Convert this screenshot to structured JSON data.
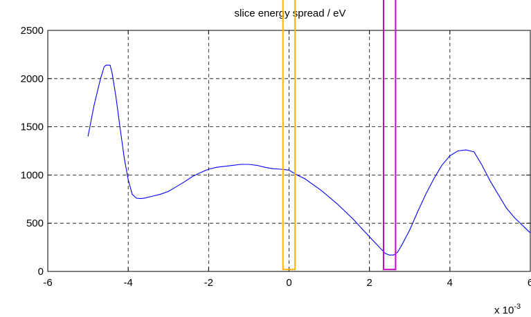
{
  "chart_data": {
    "type": "line",
    "title": "slice energy spread / eV",
    "xlabel": "",
    "ylabel": "",
    "x_multiplier_label": "x 10",
    "x_multiplier_exponent": "-3",
    "xlim": [
      -6,
      6
    ],
    "ylim": [
      0,
      2500
    ],
    "xticks": [
      -6,
      -4,
      -2,
      0,
      2,
      4,
      6
    ],
    "xtick_labels": [
      "-6",
      "-4",
      "-2",
      "0",
      "2",
      "4",
      "6"
    ],
    "yticks": [
      0,
      500,
      1000,
      1500,
      2000,
      2500
    ],
    "ytick_labels": [
      "0",
      "500",
      "1000",
      "1500",
      "2000",
      "2500"
    ],
    "grid": true,
    "grid_style": "dashed",
    "series": [
      {
        "color": "#0000ff",
        "x": [
          -5.0,
          -4.85,
          -4.7,
          -4.6,
          -4.55,
          -4.45,
          -4.4,
          -4.3,
          -4.2,
          -4.1,
          -4.0,
          -3.9,
          -3.8,
          -3.7,
          -3.6,
          -3.4,
          -3.2,
          -3.0,
          -2.8,
          -2.6,
          -2.4,
          -2.2,
          -2.0,
          -1.8,
          -1.6,
          -1.4,
          -1.2,
          -1.0,
          -0.8,
          -0.6,
          -0.4,
          -0.2,
          0.0,
          0.2,
          0.4,
          0.6,
          0.8,
          1.0,
          1.2,
          1.4,
          1.6,
          1.8,
          2.0,
          2.2,
          2.4,
          2.5,
          2.6,
          2.7,
          2.8,
          3.0,
          3.2,
          3.4,
          3.6,
          3.8,
          4.0,
          4.2,
          4.4,
          4.5,
          4.6,
          4.8,
          5.0,
          5.2,
          5.4,
          5.6,
          5.8,
          6.0
        ],
        "y": [
          1400,
          1720,
          1980,
          2120,
          2140,
          2140,
          2060,
          1800,
          1480,
          1180,
          950,
          800,
          760,
          755,
          760,
          780,
          800,
          830,
          880,
          930,
          985,
          1025,
          1060,
          1080,
          1090,
          1100,
          1110,
          1110,
          1100,
          1080,
          1065,
          1060,
          1050,
          1000,
          960,
          900,
          840,
          770,
          700,
          620,
          540,
          450,
          360,
          270,
          185,
          170,
          170,
          200,
          270,
          430,
          620,
          800,
          960,
          1100,
          1200,
          1250,
          1260,
          1250,
          1240,
          1100,
          940,
          800,
          660,
          560,
          480,
          400
        ]
      }
    ],
    "highlights": [
      {
        "x_start": -0.15,
        "x_end": 0.15,
        "y_start": 20,
        "y_top_beyond_axes": true,
        "color": "#ffb300"
      },
      {
        "x_start": 2.35,
        "x_end": 2.65,
        "y_start": 20,
        "y_top_beyond_axes": true,
        "color": "#cc00cc"
      }
    ]
  }
}
